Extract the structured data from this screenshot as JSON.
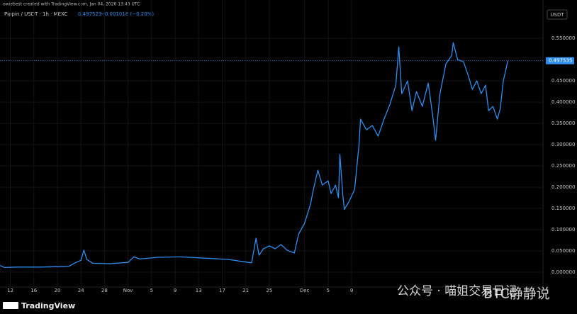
{
  "chart_data": {
    "type": "line",
    "title": "owiebest created with TradingView.com, Jan 04, 2026 13:43 UTC",
    "symbol": "Pippin / USDT · 1h · MEXC",
    "header_price": "0.497523",
    "header_change": "−0.001018 (−0.20%)",
    "currency": "USDT",
    "logo": "TradingView",
    "annotations": [
      "公众号 · 喵姐交易日记",
      "BTC静静说"
    ],
    "last_price": {
      "value": 0.497535,
      "label": "0.497535"
    },
    "grid": true,
    "series": [
      {
        "name": "Pippin / USDT",
        "color": "#2e8ef0",
        "x": [
          "10-10 06",
          "10-11 00",
          "10-13 00",
          "10-17 00",
          "10-20 00",
          "10-22 00",
          "10-23 00",
          "10-24 00",
          "10-24 12",
          "10-25 00",
          "10-26 00",
          "10-29 00",
          "11-01 00",
          "11-02 00",
          "11-03 00",
          "11-06 00",
          "11-10 00",
          "11-14 00",
          "11-18 00",
          "11-22 00",
          "11-22 18",
          "11-23 06",
          "11-24 00",
          "11-25 00",
          "11-26 00",
          "11-27 00",
          "11-28 00",
          "11-29 06",
          "11-30 00",
          "12-01 00",
          "12-02 00",
          "12-02 12",
          "12-03 06",
          "12-04 00",
          "12-05 00",
          "12-05 12",
          "12-06 06",
          "12-06 18",
          "12-07 00",
          "12-07 12",
          "12-07 18",
          "12-08 12",
          "12-09 12",
          "12-10 06",
          "12-10 12",
          "12-11 12",
          "12-12 12",
          "12-13 12",
          "12-14 12",
          "12-15 12",
          "12-16 12",
          "12-17 00",
          "12-17 12",
          "12-18 12",
          "12-19 06",
          "12-20 00",
          "12-21 00",
          "12-22 00",
          "12-22 18",
          "12-23 06",
          "12-24 00",
          "12-25 00",
          "12-26 00",
          "12-26 06",
          "12-27 00",
          "12-28 00",
          "12-28 18",
          "12-29 12",
          "12-30 06",
          "12-31 00",
          "12-31 18",
          "01-01 06",
          "01-02 00",
          "01-02 18",
          "01-03 06",
          "01-03 18",
          "01-04 13"
        ],
        "values": [
          0.016,
          0.011,
          0.012,
          0.012,
          0.013,
          0.014,
          0.022,
          0.028,
          0.052,
          0.03,
          0.021,
          0.02,
          0.023,
          0.036,
          0.031,
          0.035,
          0.036,
          0.033,
          0.03,
          0.022,
          0.08,
          0.04,
          0.055,
          0.062,
          0.055,
          0.065,
          0.052,
          0.045,
          0.09,
          0.115,
          0.16,
          0.195,
          0.24,
          0.205,
          0.215,
          0.185,
          0.205,
          0.175,
          0.277,
          0.18,
          0.148,
          0.165,
          0.195,
          0.3,
          0.36,
          0.335,
          0.345,
          0.32,
          0.36,
          0.395,
          0.44,
          0.53,
          0.42,
          0.45,
          0.38,
          0.425,
          0.39,
          0.445,
          0.37,
          0.31,
          0.42,
          0.49,
          0.51,
          0.54,
          0.5,
          0.495,
          0.465,
          0.43,
          0.45,
          0.42,
          0.44,
          0.38,
          0.39,
          0.36,
          0.385,
          0.45,
          0.4975
        ]
      }
    ],
    "xlim": [
      "10-10 06",
      "01-10 12"
    ],
    "xticks": [
      {
        "value": "10-12 00",
        "label": "12"
      },
      {
        "value": "10-16 00",
        "label": "16"
      },
      {
        "value": "10-20 00",
        "label": "20"
      },
      {
        "value": "10-24 00",
        "label": "24"
      },
      {
        "value": "10-28 00",
        "label": "28"
      },
      {
        "value": "11-01 00",
        "label": "Nov"
      },
      {
        "value": "11-05 00",
        "label": "5"
      },
      {
        "value": "11-09 00",
        "label": "9"
      },
      {
        "value": "11-13 00",
        "label": "13"
      },
      {
        "value": "11-17 00",
        "label": "17"
      },
      {
        "value": "11-21 00",
        "label": "21"
      },
      {
        "value": "11-25 00",
        "label": "25"
      },
      {
        "value": "12-01 00",
        "label": "Dec"
      },
      {
        "value": "12-05 00",
        "label": "5"
      },
      {
        "value": "12-09 00",
        "label": "9"
      }
    ],
    "ylim": [
      -0.035,
      0.627
    ],
    "yticks": [
      {
        "value": 0,
        "label": "0.000000"
      },
      {
        "value": 0.05,
        "label": "0.050000"
      },
      {
        "value": 0.1,
        "label": "0.100000"
      },
      {
        "value": 0.15,
        "label": "0.150000"
      },
      {
        "value": 0.2,
        "label": "0.200000"
      },
      {
        "value": 0.25,
        "label": "0.250000"
      },
      {
        "value": 0.3,
        "label": "0.300000"
      },
      {
        "value": 0.35,
        "label": "0.350000"
      },
      {
        "value": 0.4,
        "label": "0.400000"
      },
      {
        "value": 0.45,
        "label": "0.450000"
      },
      {
        "value": 0.55,
        "label": "0.550000"
      }
    ]
  }
}
